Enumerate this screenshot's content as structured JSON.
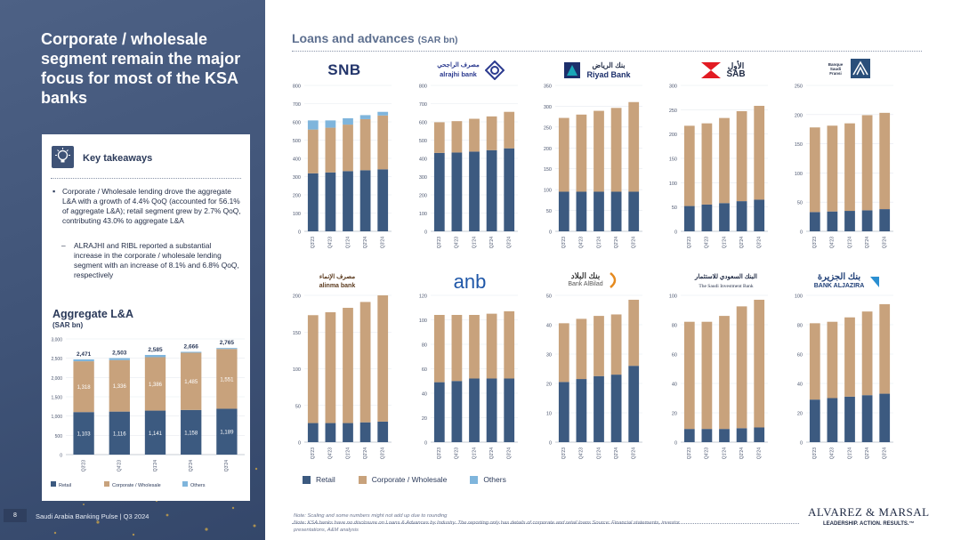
{
  "headline": "Corporate / wholesale segment remain the major focus for most of the KSA banks",
  "footer": {
    "page_number": "8",
    "title": "Saudi Arabia Banking Pulse | Q3 2024"
  },
  "key_takeaways": {
    "title": "Key takeaways",
    "bullet_1": "Corporate / Wholesale lending drove the aggregate L&A with a growth of 4.4% QoQ (accounted for 56.1% of aggregate L&A); retail segment grew by 2.7% QoQ, contributing 43.0% to aggregate L&A",
    "bullet_2": "ALRAJHI and RIBL reported a substantial increase in the corporate / wholesale lending segment with an increase of 8.1% and 6.8% QoQ, respectively"
  },
  "aggregate": {
    "title": "Aggregate L&A",
    "unit": "(SAR bn)"
  },
  "main": {
    "title": "Loans and advances",
    "unit": "(SAR bn)"
  },
  "legend": {
    "retail": "Retail",
    "corporate": "Corporate / Wholesale",
    "others": "Others"
  },
  "colors": {
    "retail": "#3c5a80",
    "corporate": "#c8a27c",
    "others": "#7fb5dc",
    "axis": "#b9bfca",
    "panel": "#3f5377"
  },
  "logos": {
    "snb": {
      "text": "SNB"
    },
    "alrajhi": {
      "arabic": "مصرف الراجحي",
      "text": "alrajhi bank"
    },
    "riyad": {
      "arabic": "بنك الرياض",
      "text": "Riyad Bank"
    },
    "sab": {
      "arabic": "الأول",
      "text": "SAB"
    },
    "bsf": {
      "text": "Banque Saudi Fransi"
    },
    "alinma": {
      "arabic": "مصرف الإنماء",
      "text": "alinma bank"
    },
    "anb": {
      "text": "anb"
    },
    "albilad": {
      "arabic": "بنك البلاد",
      "text": "Bank AlBilad"
    },
    "sib": {
      "arabic": "البنك السعودي للاستثمار",
      "text": "The Saudi Investment Bank"
    },
    "aljazira": {
      "arabic": "بنك الجزيرة",
      "text": "BANK ALJAZIRA"
    }
  },
  "note": "Note: Scaling and some numbers might not add up due to rounding\nNote: KSA banks have no disclosure on Loans & Advances by Industry. The reporting only has details of corporate and retail loans Source: Financial statements, investor presentations, A&M analysis",
  "am_logo": {
    "name": "ALVAREZ & MARSAL",
    "tagline": "LEADERSHIP. ACTION. RESULTS.™"
  },
  "chart_data": [
    {
      "id": "aggregate",
      "type": "bar",
      "stacked": true,
      "categories": [
        "Q3'23",
        "Q4'23",
        "Q1'24",
        "Q2'24",
        "Q3'24"
      ],
      "series": [
        {
          "name": "Retail",
          "values": [
            1103,
            1116,
            1141,
            1158,
            1189
          ],
          "labels": [
            "1,103",
            "1,116",
            "1,141",
            "1,158",
            "1,189"
          ]
        },
        {
          "name": "Corporate / Wholesale",
          "values": [
            1318,
            1336,
            1386,
            1485,
            1551
          ],
          "labels": [
            "1,318",
            "1,336",
            "1,386",
            "1,485",
            "1,551"
          ]
        },
        {
          "name": "Others",
          "values": [
            50,
            51,
            58,
            23,
            25
          ]
        }
      ],
      "totals": [
        "2,471",
        "2,503",
        "2,585",
        "2,666",
        "2,765"
      ],
      "ylim": [
        0,
        3000
      ],
      "yticks": [
        "0",
        "500",
        "1,000",
        "1,500",
        "2,000",
        "2,500",
        "3,000"
      ],
      "ytick_values": [
        0,
        500,
        1000,
        1500,
        2000,
        2500,
        3000
      ]
    },
    {
      "id": "snb",
      "type": "bar",
      "stacked": true,
      "bank": "SNB",
      "categories": [
        "Q3'23",
        "Q4'23",
        "Q1'24",
        "Q2'24",
        "Q3'24"
      ],
      "series": [
        {
          "name": "Retail",
          "values": [
            318,
            323,
            330,
            335,
            340
          ]
        },
        {
          "name": "Corporate / Wholesale",
          "values": [
            240,
            245,
            255,
            280,
            295
          ]
        },
        {
          "name": "Others",
          "values": [
            50,
            40,
            35,
            22,
            20
          ]
        }
      ],
      "ylim": [
        0,
        800
      ],
      "yticks": [
        "0",
        "100",
        "200",
        "300",
        "400",
        "500",
        "600",
        "700",
        "800"
      ],
      "ytick_values": [
        0,
        100,
        200,
        300,
        400,
        500,
        600,
        700,
        800
      ]
    },
    {
      "id": "alrajhi",
      "type": "bar",
      "stacked": true,
      "bank": "Al Rajhi",
      "categories": [
        "Q3'23",
        "Q4'23",
        "Q1'24",
        "Q2'24",
        "Q3'24"
      ],
      "series": [
        {
          "name": "Retail",
          "values": [
            430,
            432,
            437,
            445,
            455
          ]
        },
        {
          "name": "Corporate / Wholesale",
          "values": [
            168,
            172,
            180,
            185,
            200
          ]
        }
      ],
      "ylim": [
        0,
        800
      ],
      "yticks": [
        "0",
        "100",
        "200",
        "300",
        "400",
        "500",
        "600",
        "700",
        "800"
      ],
      "ytick_values": [
        0,
        100,
        200,
        300,
        400,
        500,
        600,
        700,
        800
      ]
    },
    {
      "id": "riyad",
      "type": "bar",
      "stacked": true,
      "bank": "Riyad Bank",
      "categories": [
        "Q3'23",
        "Q4'23",
        "Q1'24",
        "Q2'24",
        "Q3'24"
      ],
      "series": [
        {
          "name": "Retail",
          "values": [
            95,
            95,
            95,
            95,
            95
          ]
        },
        {
          "name": "Corporate / Wholesale",
          "values": [
            177,
            185,
            194,
            201,
            215
          ]
        }
      ],
      "ylim": [
        0,
        350
      ],
      "yticks": [
        "0",
        "50",
        "100",
        "150",
        "200",
        "250",
        "300",
        "350"
      ],
      "ytick_values": [
        0,
        50,
        100,
        150,
        200,
        250,
        300,
        350
      ]
    },
    {
      "id": "sab",
      "type": "bar",
      "stacked": true,
      "bank": "SAB",
      "categories": [
        "Q3'23",
        "Q4'23",
        "Q1'24",
        "Q2'24",
        "Q3'24"
      ],
      "series": [
        {
          "name": "Retail",
          "values": [
            52,
            55,
            58,
            62,
            65
          ]
        },
        {
          "name": "Corporate / Wholesale",
          "values": [
            165,
            167,
            175,
            185,
            193
          ]
        }
      ],
      "ylim": [
        0,
        300
      ],
      "yticks": [
        "0",
        "50",
        "100",
        "150",
        "200",
        "250",
        "300"
      ],
      "ytick_values": [
        0,
        50,
        100,
        150,
        200,
        250,
        300
      ]
    },
    {
      "id": "bsf",
      "type": "bar",
      "stacked": true,
      "bank": "Banque Saudi Fransi",
      "categories": [
        "Q3'23",
        "Q4'23",
        "Q1'24",
        "Q2'24",
        "Q3'24"
      ],
      "series": [
        {
          "name": "Retail",
          "values": [
            33,
            34,
            35,
            36,
            38
          ]
        },
        {
          "name": "Corporate / Wholesale",
          "values": [
            145,
            147,
            150,
            163,
            165
          ]
        }
      ],
      "ylim": [
        0,
        250
      ],
      "yticks": [
        "0",
        "50",
        "100",
        "150",
        "200",
        "250"
      ],
      "ytick_values": [
        0,
        50,
        100,
        150,
        200,
        250
      ]
    },
    {
      "id": "alinma",
      "type": "bar",
      "stacked": true,
      "bank": "Alinma",
      "categories": [
        "Q3'23",
        "Q4'23",
        "Q1'24",
        "Q2'24",
        "Q3'24"
      ],
      "series": [
        {
          "name": "Retail",
          "values": [
            26,
            26,
            26,
            27,
            28
          ]
        },
        {
          "name": "Corporate / Wholesale",
          "values": [
            147,
            151,
            157,
            164,
            172
          ]
        }
      ],
      "ylim": [
        0,
        200
      ],
      "yticks": [
        "0",
        "50",
        "100",
        "150",
        "200"
      ],
      "ytick_values": [
        0,
        50,
        100,
        150,
        200
      ]
    },
    {
      "id": "anb",
      "type": "bar",
      "stacked": true,
      "bank": "ANB",
      "categories": [
        "Q3'23",
        "Q4'23",
        "Q1'24",
        "Q2'24",
        "Q3'24"
      ],
      "series": [
        {
          "name": "Retail",
          "values": [
            49,
            50,
            52,
            52,
            52
          ]
        },
        {
          "name": "Corporate / Wholesale",
          "values": [
            55,
            54,
            52,
            53,
            55
          ]
        }
      ],
      "ylim": [
        0,
        120
      ],
      "yticks": [
        "0",
        "20",
        "40",
        "60",
        "80",
        "100",
        "120"
      ],
      "ytick_values": [
        0,
        20,
        40,
        60,
        80,
        100,
        120
      ]
    },
    {
      "id": "albilad",
      "type": "bar",
      "stacked": true,
      "bank": "Bank AlBilad",
      "categories": [
        "Q3'23",
        "Q4'23",
        "Q1'24",
        "Q2'24",
        "Q3'24"
      ],
      "series": [
        {
          "name": "Retail",
          "values": [
            20.5,
            21.5,
            22.5,
            23,
            26
          ]
        },
        {
          "name": "Corporate / Wholesale",
          "values": [
            20,
            20.5,
            20.5,
            20.5,
            22.5
          ]
        }
      ],
      "ylim": [
        0,
        50
      ],
      "yticks": [
        "0",
        "10",
        "20",
        "30",
        "40",
        "50"
      ],
      "ytick_values": [
        0,
        10,
        20,
        30,
        40,
        50
      ]
    },
    {
      "id": "sib",
      "type": "bar",
      "stacked": true,
      "bank": "Saudi Investment Bank",
      "categories": [
        "Q3'23",
        "Q4'23",
        "Q1'24",
        "Q2'24",
        "Q3'24"
      ],
      "series": [
        {
          "name": "Retail",
          "values": [
            9,
            9,
            9,
            9.5,
            10
          ]
        },
        {
          "name": "Corporate / Wholesale",
          "values": [
            73,
            73,
            77,
            83,
            87
          ]
        }
      ],
      "ylim": [
        0,
        100
      ],
      "yticks": [
        "0",
        "20",
        "40",
        "60",
        "80",
        "100"
      ],
      "ytick_values": [
        0,
        20,
        40,
        60,
        80,
        100
      ]
    },
    {
      "id": "aljazira",
      "type": "bar",
      "stacked": true,
      "bank": "Bank AlJazira",
      "categories": [
        "Q3'23",
        "Q4'23",
        "Q1'24",
        "Q2'24",
        "Q3'24"
      ],
      "series": [
        {
          "name": "Retail",
          "values": [
            29,
            30,
            31,
            32,
            33
          ]
        },
        {
          "name": "Corporate / Wholesale",
          "values": [
            52,
            52,
            54,
            57,
            61
          ]
        }
      ],
      "ylim": [
        0,
        100
      ],
      "yticks": [
        "0",
        "20",
        "40",
        "60",
        "80",
        "100"
      ],
      "ytick_values": [
        0,
        20,
        40,
        60,
        80,
        100
      ]
    }
  ]
}
